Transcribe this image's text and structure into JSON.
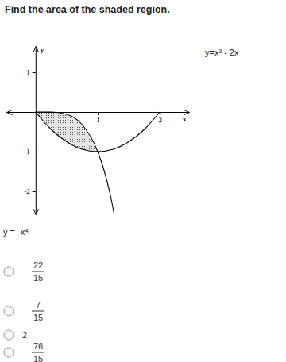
{
  "question": "Find the area of the shaded region.",
  "chart_data": {
    "type": "line",
    "x_label": "x",
    "y_label": "y",
    "xlim": [
      -0.47,
      2.47
    ],
    "ylim": [
      -2.58,
      1.66
    ],
    "xticks": [
      1,
      2
    ],
    "yticks": [
      -2,
      -1,
      1
    ],
    "grid": false,
    "series": [
      {
        "name": "y=x² - 2x",
        "color": "#000000",
        "x": [
          0,
          0.25,
          0.5,
          0.75,
          1,
          1.25,
          1.5,
          1.75,
          2
        ],
        "values": [
          0,
          -0.44,
          -0.75,
          -0.94,
          -1,
          -0.94,
          -0.75,
          -0.44,
          0
        ]
      },
      {
        "name": "y = -x⁴",
        "color": "#000000",
        "x": [
          0,
          0.25,
          0.5,
          0.75,
          1,
          1.1,
          1.2,
          1.26
        ],
        "values": [
          0,
          0,
          -0.06,
          -0.32,
          -1,
          -1.46,
          -2.07,
          -2.54
        ]
      }
    ]
  },
  "options": [
    {
      "numerator": "22",
      "denominator": "15"
    },
    {
      "numerator": "7",
      "denominator": "15"
    },
    {
      "text": "2"
    },
    {
      "numerator": "76",
      "denominator": "15"
    }
  ]
}
